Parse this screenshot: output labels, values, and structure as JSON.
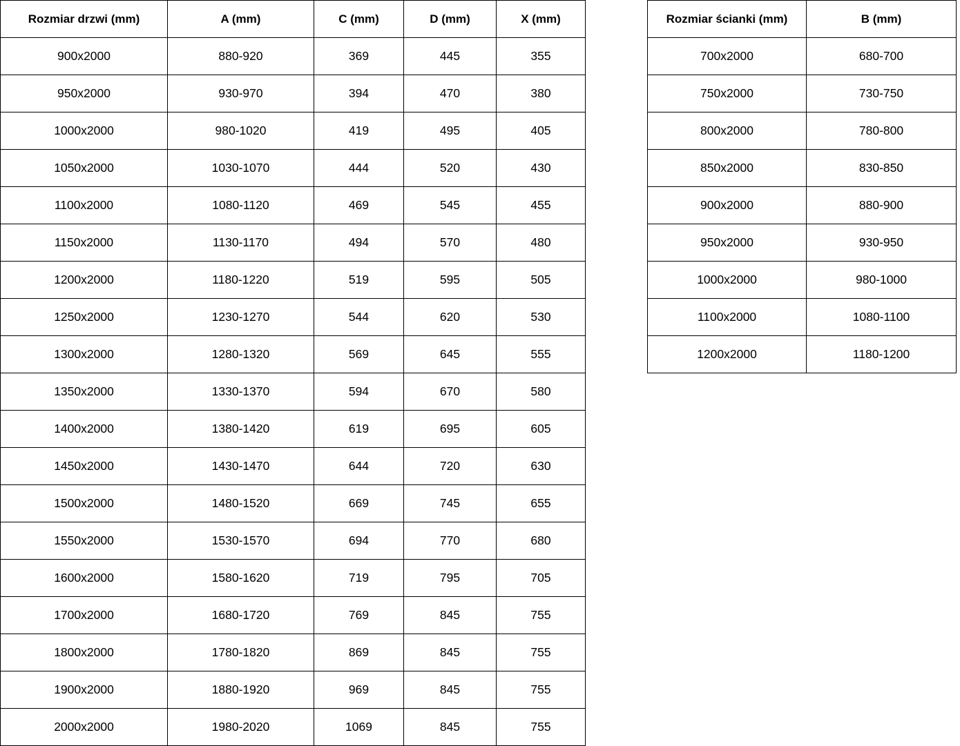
{
  "colors": {
    "border": "#000000",
    "text": "#000000",
    "background": "#ffffff"
  },
  "door_table": {
    "name": "Rozmiar drzwi",
    "headers": [
      "Rozmiar drzwi (mm)",
      "A (mm)",
      "C (mm)",
      "D (mm)",
      "X (mm)"
    ],
    "rows": [
      [
        "900x2000",
        "880-920",
        "369",
        "445",
        "355"
      ],
      [
        "950x2000",
        "930-970",
        "394",
        "470",
        "380"
      ],
      [
        "1000x2000",
        "980-1020",
        "419",
        "495",
        "405"
      ],
      [
        "1050x2000",
        "1030-1070",
        "444",
        "520",
        "430"
      ],
      [
        "1100x2000",
        "1080-1120",
        "469",
        "545",
        "455"
      ],
      [
        "1150x2000",
        "1130-1170",
        "494",
        "570",
        "480"
      ],
      [
        "1200x2000",
        "1180-1220",
        "519",
        "595",
        "505"
      ],
      [
        "1250x2000",
        "1230-1270",
        "544",
        "620",
        "530"
      ],
      [
        "1300x2000",
        "1280-1320",
        "569",
        "645",
        "555"
      ],
      [
        "1350x2000",
        "1330-1370",
        "594",
        "670",
        "580"
      ],
      [
        "1400x2000",
        "1380-1420",
        "619",
        "695",
        "605"
      ],
      [
        "1450x2000",
        "1430-1470",
        "644",
        "720",
        "630"
      ],
      [
        "1500x2000",
        "1480-1520",
        "669",
        "745",
        "655"
      ],
      [
        "1550x2000",
        "1530-1570",
        "694",
        "770",
        "680"
      ],
      [
        "1600x2000",
        "1580-1620",
        "719",
        "795",
        "705"
      ],
      [
        "1700x2000",
        "1680-1720",
        "769",
        "845",
        "755"
      ],
      [
        "1800x2000",
        "1780-1820",
        "869",
        "845",
        "755"
      ],
      [
        "1900x2000",
        "1880-1920",
        "969",
        "845",
        "755"
      ],
      [
        "2000x2000",
        "1980-2020",
        "1069",
        "845",
        "755"
      ]
    ]
  },
  "wall_table": {
    "name": "Rozmiar ścianki",
    "headers": [
      "Rozmiar ścianki (mm)",
      "B (mm)"
    ],
    "rows": [
      [
        "700x2000",
        "680-700"
      ],
      [
        "750x2000",
        "730-750"
      ],
      [
        "800x2000",
        "780-800"
      ],
      [
        "850x2000",
        "830-850"
      ],
      [
        "900x2000",
        "880-900"
      ],
      [
        "950x2000",
        "930-950"
      ],
      [
        "1000x2000",
        "980-1000"
      ],
      [
        "1100x2000",
        "1080-1100"
      ],
      [
        "1200x2000",
        "1180-1200"
      ]
    ]
  }
}
